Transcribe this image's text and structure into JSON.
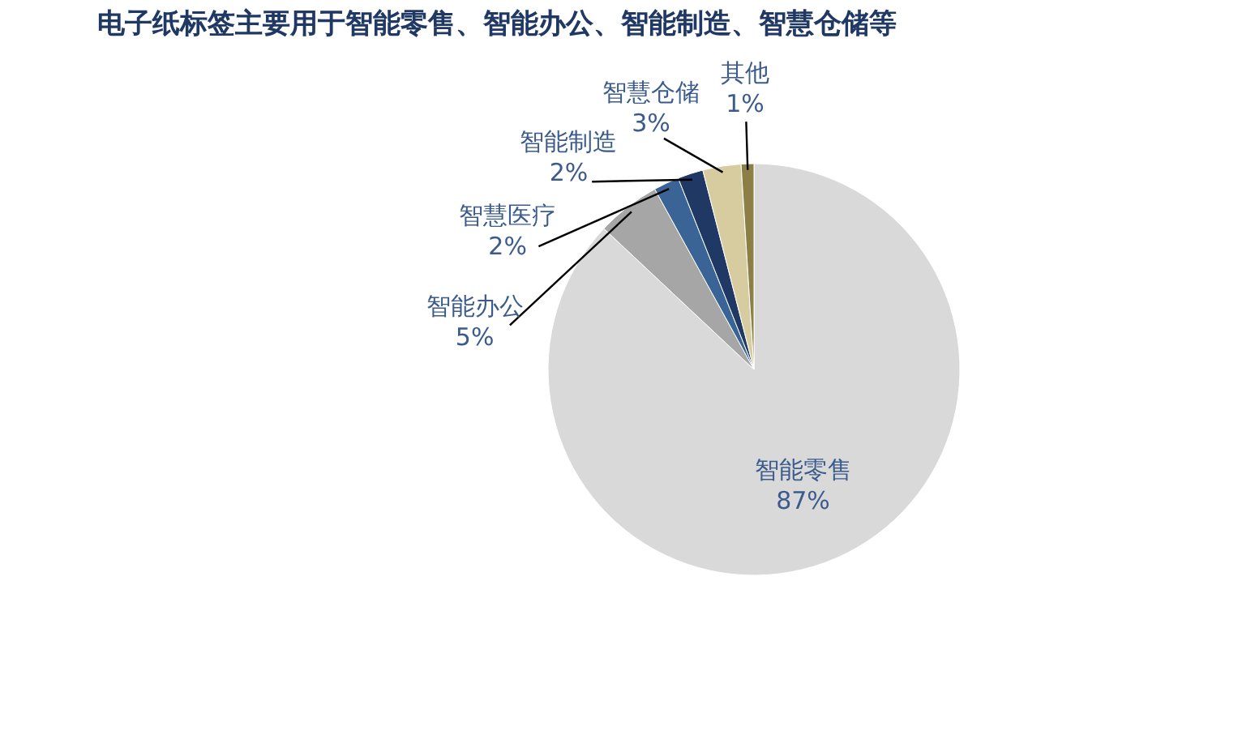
{
  "chart_data": {
    "type": "pie",
    "title": "电子纸标签主要用于智能零售、智能办公、智能制造、智慧仓储等",
    "categories": [
      "智能零售",
      "智能办公",
      "智慧医疗",
      "智能制造",
      "智慧仓储",
      "其他"
    ],
    "values": [
      87,
      5,
      2,
      2,
      3,
      1
    ],
    "value_labels": [
      "87%",
      "5%",
      "2%",
      "2%",
      "3%",
      "1%"
    ],
    "colors": [
      "#d9d9d9",
      "#a6a6a6",
      "#3a6496",
      "#1f3864",
      "#d6cca0",
      "#8c7f45"
    ],
    "legend": false
  }
}
